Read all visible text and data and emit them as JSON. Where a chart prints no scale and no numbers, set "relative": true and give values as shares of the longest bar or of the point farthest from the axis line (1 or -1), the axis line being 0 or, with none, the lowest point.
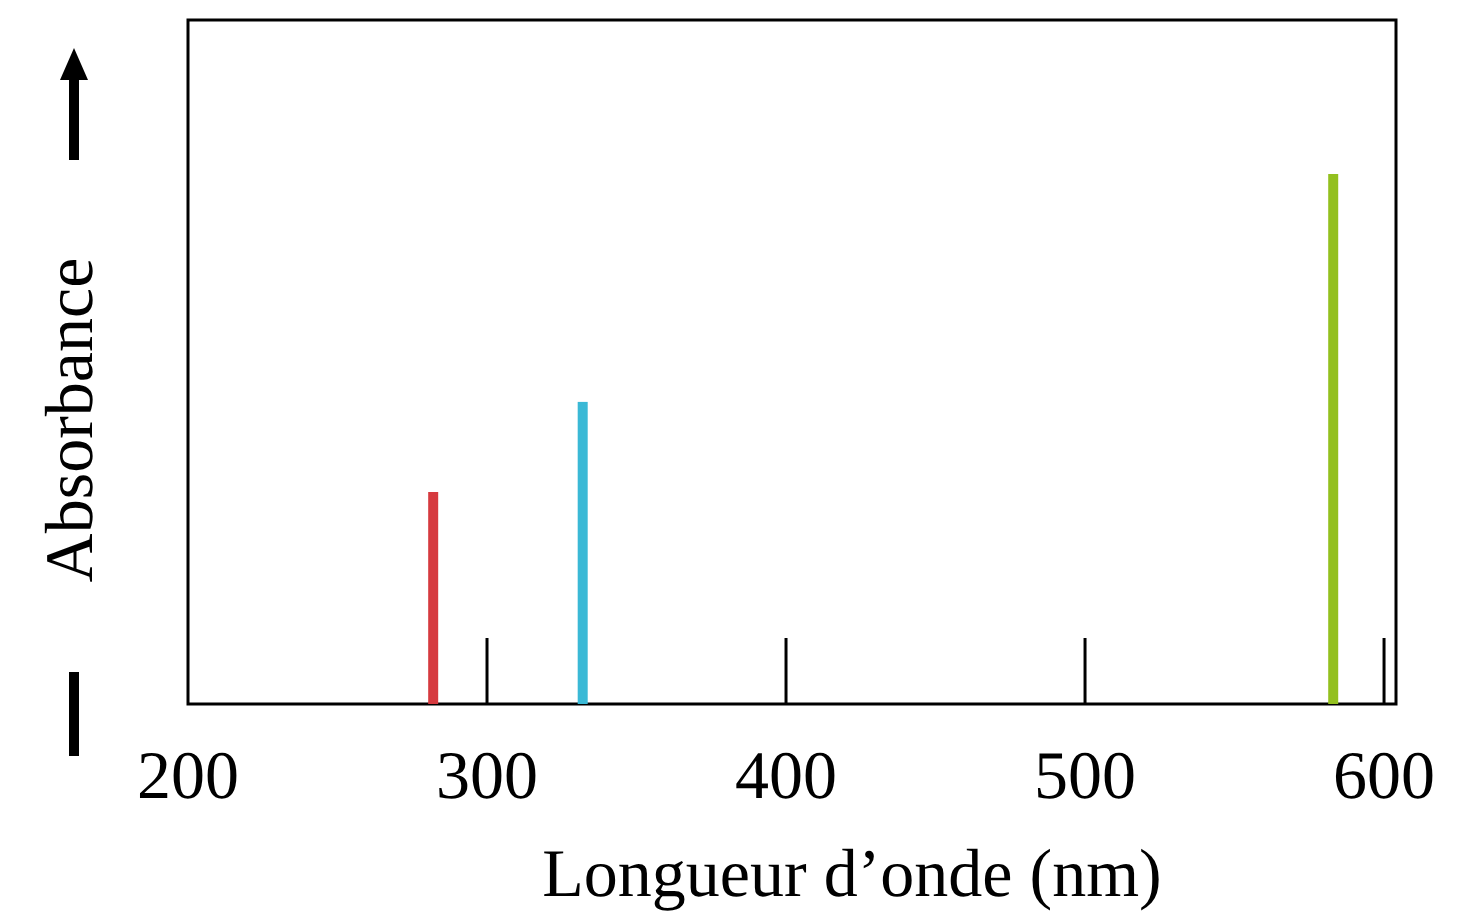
{
  "chart_data": {
    "type": "bar",
    "xlabel": "Longueur d’onde (nm)",
    "ylabel": "Absorbance",
    "relative": true,
    "x": [
      282,
      332,
      583
    ],
    "values": [
      0.4,
      0.57,
      1
    ],
    "colors": [
      "#d63a3f",
      "#3ab9d6",
      "#93c01f"
    ],
    "xlim": [
      200,
      604
    ],
    "xticks": [
      200,
      300,
      400,
      500,
      600
    ]
  }
}
